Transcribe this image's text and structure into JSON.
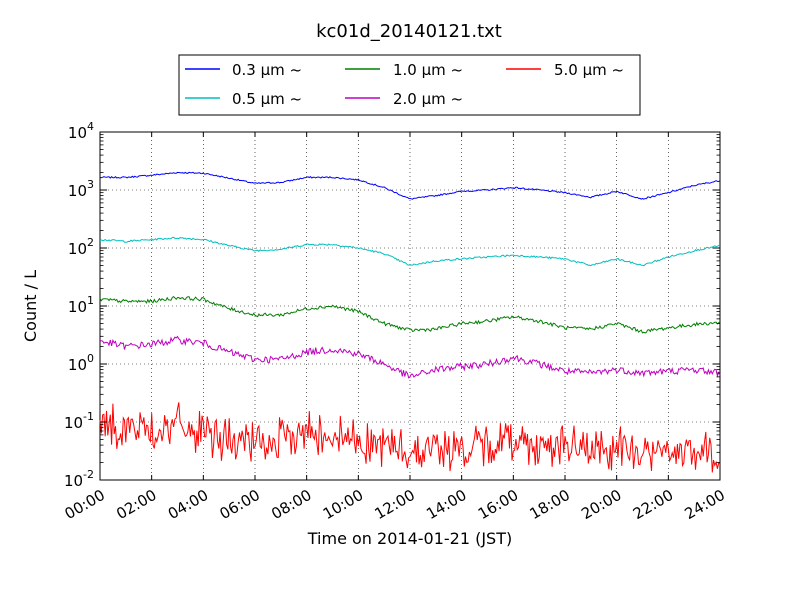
{
  "chart_data": {
    "type": "line",
    "title": "kc01d_20140121.txt",
    "xlabel": "Time on 2014-01-21 (JST)",
    "ylabel": "Count / L",
    "yscale": "log",
    "grid": true,
    "legend_position": "top-center",
    "xlim": [
      "00:00",
      "24:00"
    ],
    "ylim": [
      0.01,
      10000
    ],
    "x_ticks": [
      "00:00",
      "02:00",
      "04:00",
      "06:00",
      "08:00",
      "10:00",
      "12:00",
      "14:00",
      "16:00",
      "18:00",
      "20:00",
      "22:00",
      "24:00"
    ],
    "y_ticks": [
      {
        "base": "10",
        "exp": "-2",
        "value": 0.01
      },
      {
        "base": "10",
        "exp": "-1",
        "value": 0.1
      },
      {
        "base": "10",
        "exp": "0",
        "value": 1
      },
      {
        "base": "10",
        "exp": "1",
        "value": 10
      },
      {
        "base": "10",
        "exp": "2",
        "value": 100
      },
      {
        "base": "10",
        "exp": "3",
        "value": 1000
      },
      {
        "base": "10",
        "exp": "4",
        "value": 10000
      }
    ],
    "series": [
      {
        "name": "0.3 μm ~",
        "color": "#0000ff",
        "x": [
          "00:00",
          "01:00",
          "02:00",
          "03:00",
          "04:00",
          "05:00",
          "06:00",
          "07:00",
          "08:00",
          "09:00",
          "10:00",
          "11:00",
          "12:00",
          "13:00",
          "14:00",
          "15:00",
          "16:00",
          "17:00",
          "18:00",
          "19:00",
          "20:00",
          "21:00",
          "22:00",
          "23:00",
          "24:00"
        ],
        "values": [
          1650,
          1650,
          1800,
          2000,
          1950,
          1600,
          1300,
          1350,
          1650,
          1650,
          1500,
          1100,
          700,
          800,
          950,
          1000,
          1100,
          1000,
          900,
          750,
          950,
          700,
          900,
          1200,
          1450
        ]
      },
      {
        "name": "0.5 μm ~",
        "color": "#00bfbf",
        "x": [
          "00:00",
          "01:00",
          "02:00",
          "03:00",
          "04:00",
          "05:00",
          "06:00",
          "07:00",
          "08:00",
          "09:00",
          "10:00",
          "11:00",
          "12:00",
          "13:00",
          "14:00",
          "15:00",
          "16:00",
          "17:00",
          "18:00",
          "19:00",
          "20:00",
          "21:00",
          "22:00",
          "23:00",
          "24:00"
        ],
        "values": [
          140,
          130,
          140,
          150,
          140,
          110,
          90,
          95,
          115,
          115,
          100,
          80,
          50,
          60,
          65,
          70,
          75,
          70,
          65,
          50,
          65,
          50,
          70,
          90,
          110
        ]
      },
      {
        "name": "1.0 μm ~",
        "color": "#008000",
        "x": [
          "00:00",
          "01:00",
          "02:00",
          "03:00",
          "04:00",
          "05:00",
          "06:00",
          "07:00",
          "08:00",
          "09:00",
          "10:00",
          "11:00",
          "12:00",
          "13:00",
          "14:00",
          "15:00",
          "16:00",
          "17:00",
          "18:00",
          "19:00",
          "20:00",
          "21:00",
          "22:00",
          "23:00",
          "24:00"
        ],
        "values": [
          13,
          12,
          12,
          14,
          13,
          9,
          7,
          7,
          9,
          10,
          8,
          5,
          3.8,
          4,
          5,
          5.5,
          6.5,
          5.5,
          4.2,
          4,
          5,
          3.6,
          4.2,
          4.8,
          5.2
        ]
      },
      {
        "name": "2.0 μm ~",
        "color": "#bf00bf",
        "x": [
          "00:00",
          "01:00",
          "02:00",
          "03:00",
          "04:00",
          "05:00",
          "06:00",
          "07:00",
          "08:00",
          "09:00",
          "10:00",
          "11:00",
          "12:00",
          "13:00",
          "14:00",
          "15:00",
          "16:00",
          "17:00",
          "18:00",
          "19:00",
          "20:00",
          "21:00",
          "22:00",
          "23:00",
          "24:00"
        ],
        "values": [
          2.5,
          2.0,
          2.2,
          2.6,
          2.3,
          1.6,
          1.2,
          1.2,
          1.6,
          1.8,
          1.5,
          1.0,
          0.6,
          0.8,
          0.9,
          1.0,
          1.3,
          1.0,
          0.75,
          0.7,
          0.8,
          0.7,
          0.75,
          0.8,
          0.7
        ]
      },
      {
        "name": "5.0 μm ~",
        "color": "#ff0000",
        "x": [
          "00:00",
          "01:00",
          "02:00",
          "03:00",
          "04:00",
          "05:00",
          "06:00",
          "07:00",
          "08:00",
          "09:00",
          "10:00",
          "11:00",
          "12:00",
          "13:00",
          "14:00",
          "15:00",
          "16:00",
          "17:00",
          "18:00",
          "19:00",
          "20:00",
          "21:00",
          "22:00",
          "23:00",
          "24:00"
        ],
        "values": [
          0.09,
          0.08,
          0.07,
          0.09,
          0.06,
          0.05,
          0.04,
          0.05,
          0.07,
          0.06,
          0.05,
          0.04,
          0.03,
          0.04,
          0.03,
          0.04,
          0.05,
          0.04,
          0.04,
          0.03,
          0.035,
          0.03,
          0.03,
          0.03,
          0.025
        ]
      }
    ]
  }
}
